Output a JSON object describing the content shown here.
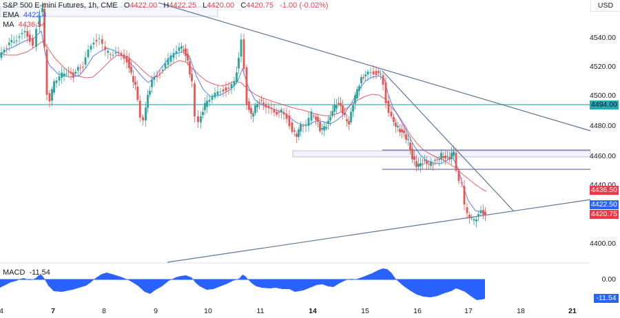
{
  "header": {
    "symbol": "S&P 500 E-mini Futures, 1h, CME",
    "open_label": "O",
    "open": "4422.00",
    "high_label": "H",
    "high": "4422.25",
    "low_label": "L",
    "low": "4420.00",
    "close_label": "C",
    "close": "4420.75",
    "change": "-1.00 (-0.02%)"
  },
  "indicators": {
    "ema_label": "EMA",
    "ema_value": "4422.4",
    "ma_label": "MA",
    "ma_value": "4436.54",
    "macd_label": "MACD",
    "macd_value": "-11.54"
  },
  "price_axis": {
    "currency": "USD",
    "ticks": [
      "4540.00",
      "4520.00",
      "4500.00",
      "4480.00",
      "4460.00",
      "4440.00",
      "4400.00"
    ],
    "tags": {
      "horizontal_level": "4494.00",
      "ma": "4436.50",
      "ema": "4422.50",
      "last_price": "4420.75"
    }
  },
  "macd_axis": {
    "zero": "0.00",
    "current": "-11.54"
  },
  "time_axis": {
    "labels": [
      {
        "text": "4",
        "bold": false
      },
      {
        "text": "7",
        "bold": true
      },
      {
        "text": "8",
        "bold": false
      },
      {
        "text": "9",
        "bold": false
      },
      {
        "text": "10",
        "bold": false
      },
      {
        "text": "11",
        "bold": false
      },
      {
        "text": "14",
        "bold": true
      },
      {
        "text": "15",
        "bold": false
      },
      {
        "text": "16",
        "bold": false
      },
      {
        "text": "17",
        "bold": false
      },
      {
        "text": "18",
        "bold": false
      },
      {
        "text": "21",
        "bold": true
      }
    ]
  },
  "colors": {
    "up": "#26a69a",
    "down": "#ef5350",
    "ema": "#2962ff",
    "ma": "#e0434f",
    "level": "#5fbfc4",
    "trendline": "#5b7399",
    "zone": "#7b6fb0",
    "macd": "#2962ff"
  },
  "chart_data": {
    "type": "candlestick",
    "title": "S&P 500 E-mini Futures, 1h, CME",
    "x_ticks": [
      "4",
      "7",
      "8",
      "9",
      "10",
      "11",
      "14",
      "15",
      "16",
      "17",
      "18",
      "21"
    ],
    "ylim": [
      4390,
      4565
    ],
    "y_ticks": [
      4400,
      4440,
      4460,
      4480,
      4500,
      4520,
      4540
    ],
    "ohlc_last": {
      "open": 4422.0,
      "high": 4422.25,
      "low": 4420.0,
      "close": 4420.75,
      "change": -1.0,
      "change_pct": -0.02
    },
    "approx_close_path": [
      {
        "x": "4",
        "y": 4530
      },
      {
        "x": "7",
        "y": 4555
      },
      {
        "x": "7",
        "y": 4498
      },
      {
        "x": "8",
        "y": 4525
      },
      {
        "x": "8",
        "y": 4540
      },
      {
        "x": "9",
        "y": 4485
      },
      {
        "x": "9",
        "y": 4535
      },
      {
        "x": "10",
        "y": 4480
      },
      {
        "x": "10",
        "y": 4545
      },
      {
        "x": "11",
        "y": 4490
      },
      {
        "x": "11",
        "y": 4480
      },
      {
        "x": "14",
        "y": 4465
      },
      {
        "x": "14",
        "y": 4500
      },
      {
        "x": "15",
        "y": 4517
      },
      {
        "x": "15",
        "y": 4470
      },
      {
        "x": "16",
        "y": 4455
      },
      {
        "x": "16",
        "y": 4460
      },
      {
        "x": "17",
        "y": 4415
      },
      {
        "x": "17",
        "y": 4420.75
      }
    ],
    "overlays": {
      "ema_last": 4422.4,
      "ma_last": 4436.54,
      "horizontal_level": 4494.0,
      "support_zone": [
        4460,
        4463
      ],
      "resistance_box": [
        4458,
        4463
      ],
      "zone_lines": [
        4463,
        4450
      ],
      "descending_trendline_long": "from ~4570 at day 7 to ~4478 at right edge",
      "descending_trendline_short": "from ~4517 at day 15 to ~4424 near day 18",
      "ascending_trendline": "from ~4388 at day 9 to ~4428 at right edge"
    },
    "macd": {
      "last": -11.54,
      "zero_line": 0.0,
      "shape": "oscillating histogram; peaks near 7, 9, 10.5, 15; troughs near 8, 11-14, 16-17"
    }
  }
}
